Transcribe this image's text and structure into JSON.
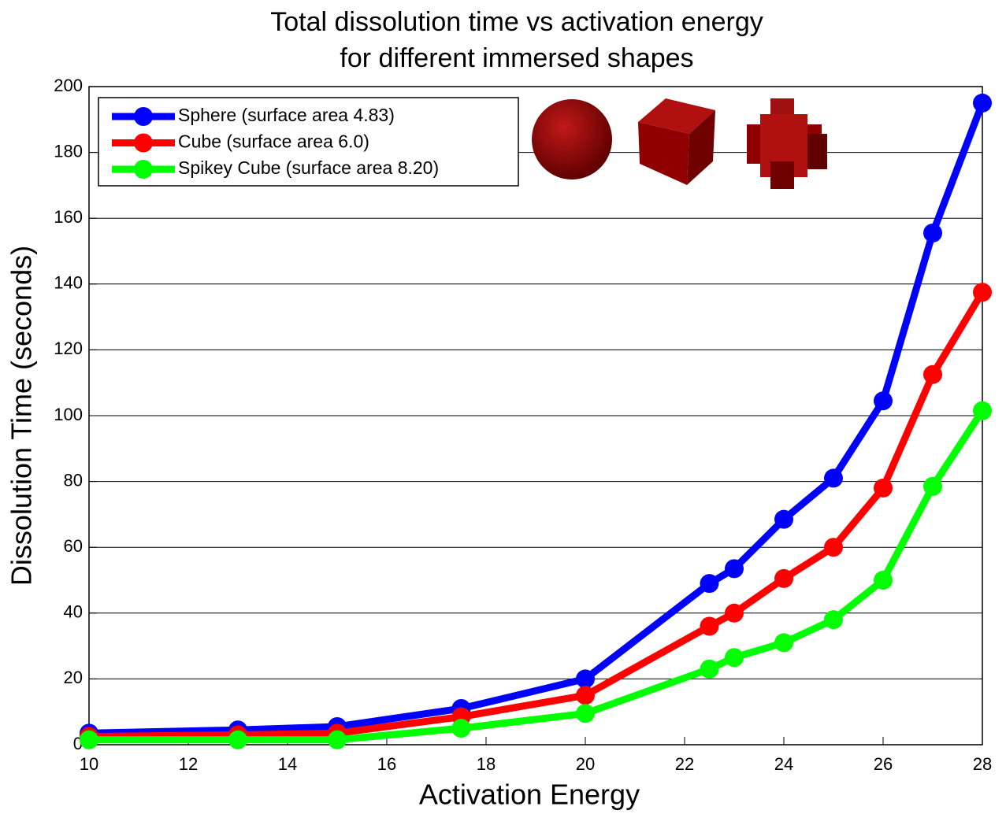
{
  "chart_data": {
    "type": "line",
    "title": [
      "Total dissolution time vs activation energy",
      "for different immersed shapes"
    ],
    "x_label": "Activation Energy",
    "y_label": "Dissolution Time (seconds)",
    "x": [
      10,
      13,
      15,
      17.5,
      20,
      22.5,
      23,
      24,
      25,
      26,
      27,
      28
    ],
    "series": [
      {
        "name": "Sphere (surface area 4.83)",
        "color": "#0000ff",
        "values": [
          3.5,
          4.5,
          5.5,
          11,
          20,
          49,
          53.5,
          68.5,
          81,
          104.5,
          155.5,
          195
        ]
      },
      {
        "name": "Cube (surface area 6.0)",
        "color": "#ff0000",
        "values": [
          2.5,
          3,
          3.5,
          8.5,
          15,
          36,
          40,
          50.5,
          60,
          78,
          112.5,
          137.5
        ]
      },
      {
        "name": "Spikey Cube (surface area 8.20)",
        "color": "#00ff00",
        "values": [
          1.5,
          1.5,
          1.5,
          5,
          9.5,
          23,
          26.5,
          31,
          38,
          50,
          78.5,
          101.5
        ]
      }
    ],
    "xlim": [
      10,
      28
    ],
    "xticks": [
      10,
      12,
      14,
      16,
      18,
      20,
      22,
      24,
      26,
      28
    ],
    "ylim": [
      0,
      200
    ],
    "yticks": [
      0,
      20,
      40,
      60,
      80,
      100,
      120,
      140,
      160,
      180,
      200
    ],
    "grid": true,
    "legend": "upper left"
  }
}
